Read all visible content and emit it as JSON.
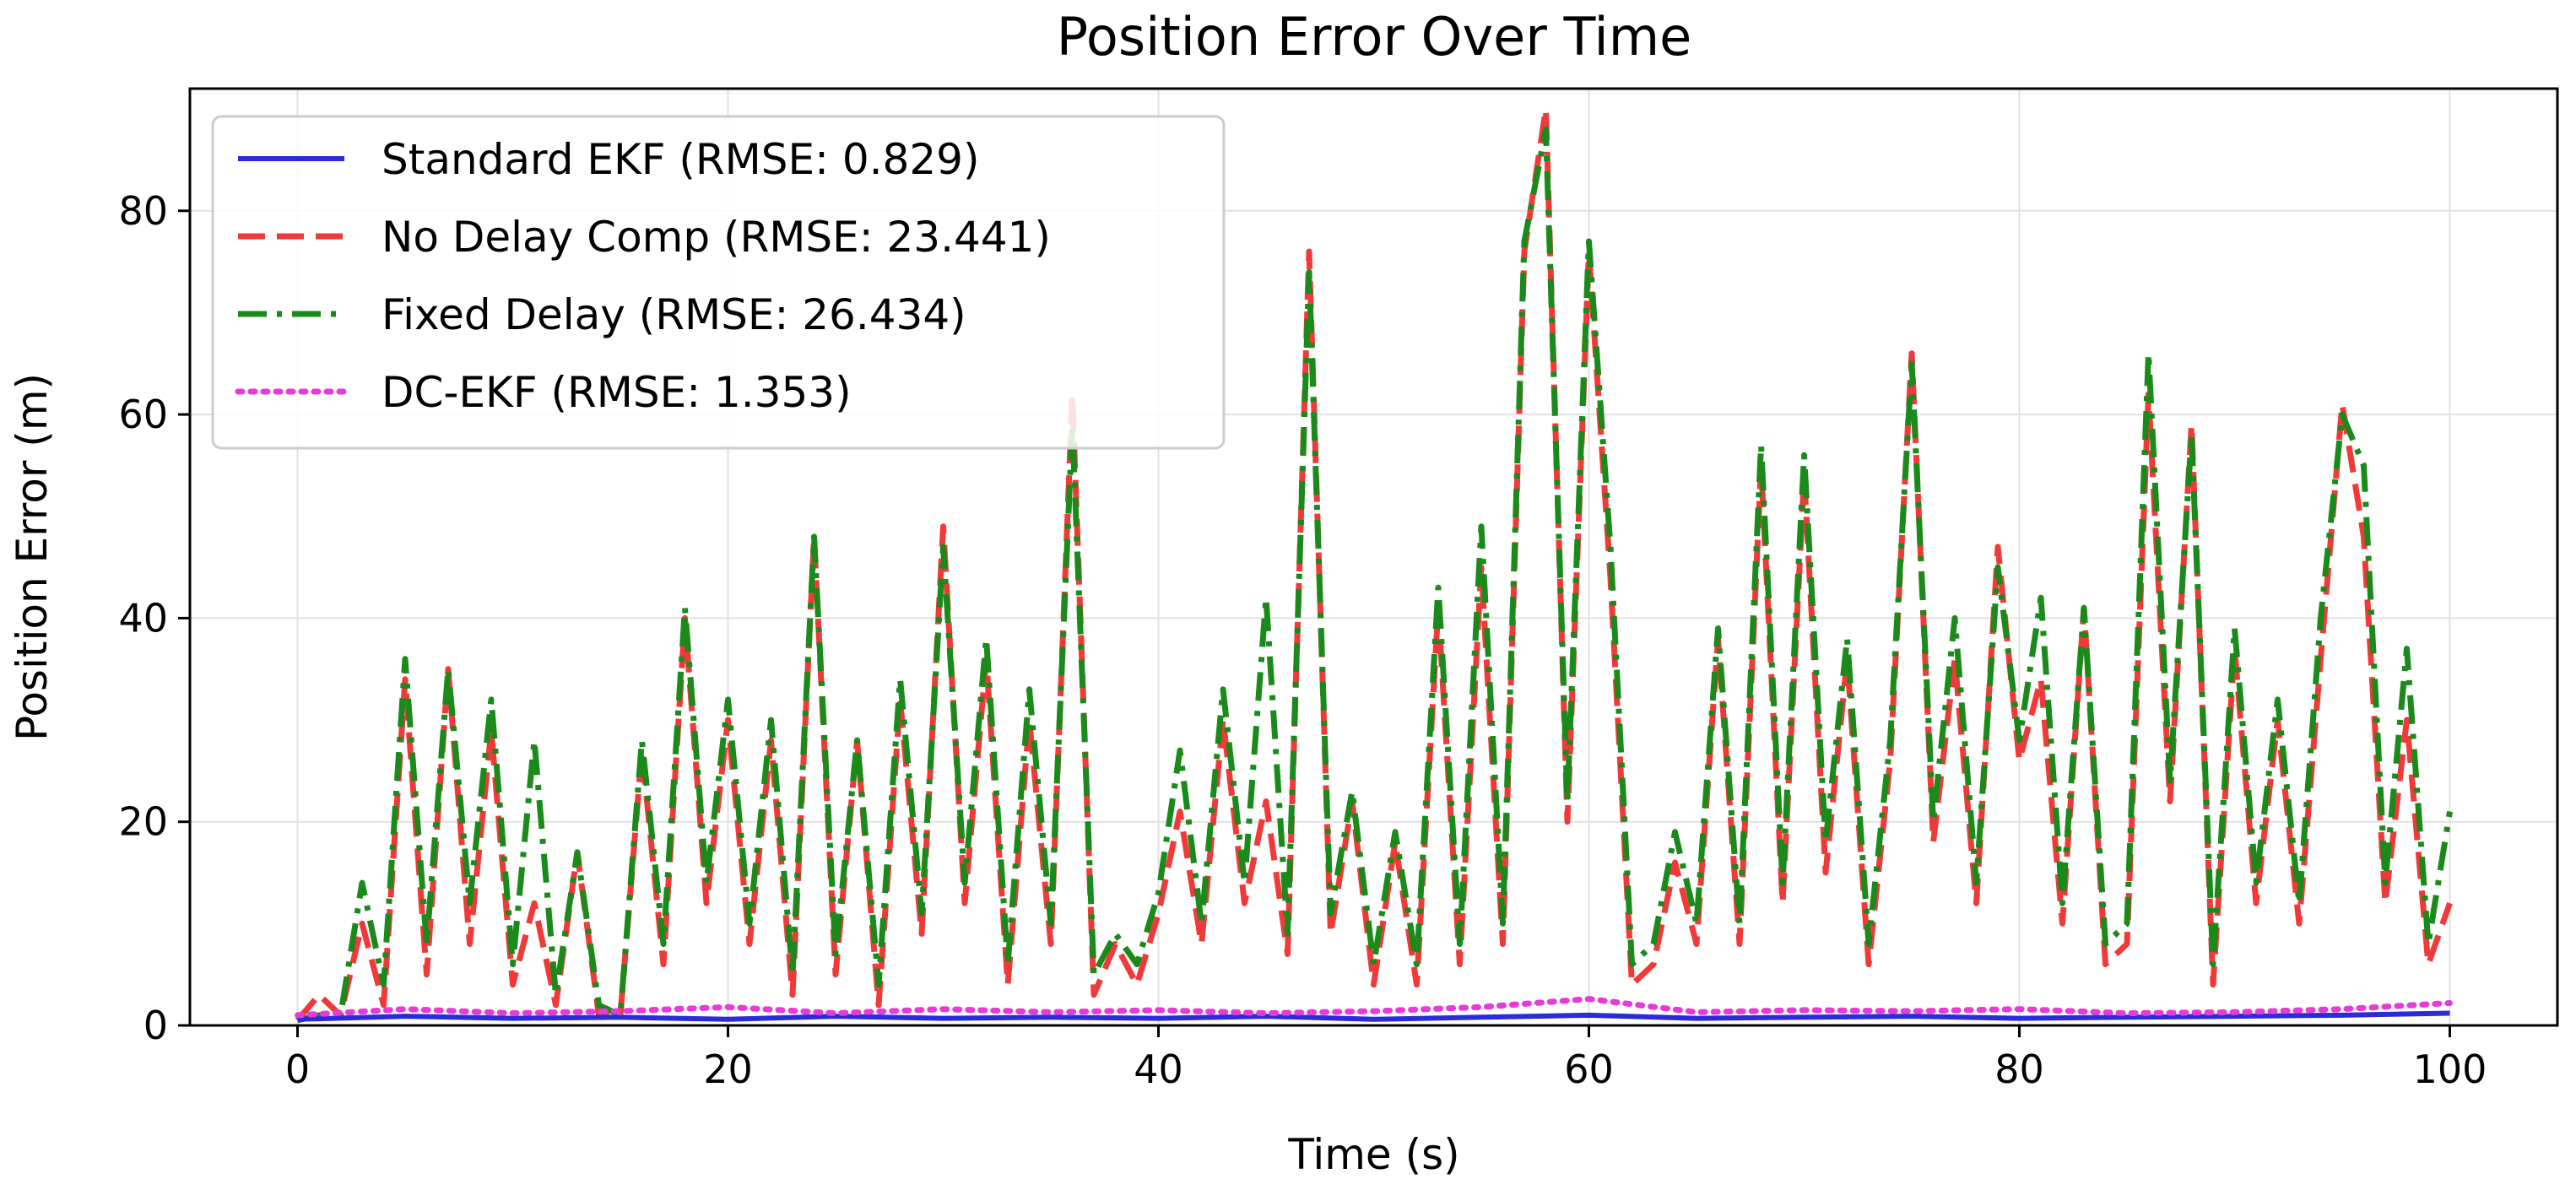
{
  "chart_data": {
    "type": "line",
    "title": "Position Error Over Time",
    "xlabel": "Time (s)",
    "ylabel": "Position Error (m)",
    "xlim": [
      -5,
      105
    ],
    "ylim": [
      0,
      92
    ],
    "xticks": [
      0,
      20,
      40,
      60,
      80,
      100
    ],
    "yticks": [
      0,
      20,
      40,
      60,
      80
    ],
    "grid": true,
    "legend_position": "upper-left",
    "series": [
      {
        "name": "Standard EKF (RMSE: 0.829)",
        "color": "#2b2bd9",
        "style": "solid",
        "x": [
          0,
          5,
          10,
          15,
          20,
          25,
          30,
          35,
          40,
          45,
          50,
          55,
          60,
          65,
          70,
          75,
          80,
          85,
          90,
          95,
          100
        ],
        "values": [
          0.6,
          0.9,
          0.7,
          0.8,
          0.6,
          0.9,
          0.7,
          0.8,
          0.7,
          0.9,
          0.6,
          0.8,
          1.0,
          0.7,
          0.8,
          0.9,
          0.7,
          0.8,
          0.9,
          1.0,
          1.2
        ]
      },
      {
        "name": "No Delay Comp (RMSE: 23.441)",
        "color": "#f03a3a",
        "style": "dashed",
        "x": [
          0,
          1,
          2,
          3,
          4,
          5,
          6,
          7,
          8,
          9,
          10,
          11,
          12,
          13,
          14,
          15,
          16,
          17,
          18,
          19,
          20,
          21,
          22,
          23,
          24,
          25,
          26,
          27,
          28,
          29,
          30,
          31,
          32,
          33,
          34,
          35,
          36,
          37,
          38,
          39,
          40,
          41,
          42,
          43,
          44,
          45,
          46,
          47,
          48,
          49,
          50,
          51,
          52,
          53,
          54,
          55,
          56,
          57,
          58,
          59,
          60,
          61,
          62,
          63,
          64,
          65,
          66,
          67,
          68,
          69,
          70,
          71,
          72,
          73,
          74,
          75,
          76,
          77,
          78,
          79,
          80,
          81,
          82,
          83,
          84,
          85,
          86,
          87,
          88,
          89,
          90,
          91,
          92,
          93,
          94,
          95,
          96,
          97,
          98,
          99,
          100
        ],
        "values": [
          0.5,
          3,
          1,
          10,
          2,
          34,
          5,
          35,
          8,
          29,
          4,
          12,
          2,
          17,
          1,
          1,
          27,
          6,
          40,
          12,
          30,
          8,
          28,
          3,
          48,
          5,
          28,
          2,
          32,
          9,
          49,
          12,
          36,
          4,
          30,
          8,
          62,
          3,
          8,
          4,
          11,
          21,
          8,
          30,
          12,
          22,
          7,
          76,
          9,
          22,
          4,
          18,
          4,
          41,
          6,
          45,
          8,
          76,
          90,
          20,
          76,
          44,
          4,
          6,
          16,
          8,
          38,
          8,
          55,
          12,
          54,
          15,
          36,
          6,
          26,
          66,
          18,
          36,
          12,
          47,
          26,
          34,
          10,
          41,
          6,
          8,
          62,
          22,
          59,
          4,
          37,
          12,
          30,
          10,
          36,
          61,
          48,
          12,
          30,
          6,
          12
        ]
      },
      {
        "name": "Fixed Delay (RMSE: 26.434)",
        "color": "#1a8a1a",
        "style": "dashdot",
        "x": [
          0,
          1,
          2,
          3,
          4,
          5,
          6,
          7,
          8,
          9,
          10,
          11,
          12,
          13,
          14,
          15,
          16,
          17,
          18,
          19,
          20,
          21,
          22,
          23,
          24,
          25,
          26,
          27,
          28,
          29,
          30,
          31,
          32,
          33,
          34,
          35,
          36,
          37,
          38,
          39,
          40,
          41,
          42,
          43,
          44,
          45,
          46,
          47,
          48,
          49,
          50,
          51,
          52,
          53,
          54,
          55,
          56,
          57,
          58,
          59,
          60,
          61,
          62,
          63,
          64,
          65,
          66,
          67,
          68,
          69,
          70,
          71,
          72,
          73,
          74,
          75,
          76,
          77,
          78,
          79,
          80,
          81,
          82,
          83,
          84,
          85,
          86,
          87,
          88,
          89,
          90,
          91,
          92,
          93,
          94,
          95,
          96,
          97,
          98,
          99,
          100
        ],
        "values": [
          0.5,
          1,
          1,
          14,
          4,
          36,
          8,
          35,
          12,
          32,
          6,
          28,
          3,
          17,
          2,
          1,
          28,
          8,
          41,
          14,
          32,
          10,
          30,
          5,
          48,
          7,
          28,
          4,
          34,
          11,
          47,
          14,
          38,
          6,
          33,
          10,
          59,
          5,
          9,
          6,
          13,
          27,
          10,
          33,
          14,
          42,
          9,
          74,
          11,
          23,
          6,
          19,
          6,
          43,
          8,
          49,
          10,
          77,
          88,
          22,
          77,
          47,
          6,
          8,
          19,
          10,
          39,
          10,
          57,
          14,
          56,
          18,
          38,
          8,
          28,
          65,
          20,
          40,
          14,
          45,
          28,
          42,
          12,
          41,
          8,
          10,
          66,
          24,
          58,
          6,
          39,
          14,
          32,
          12,
          40,
          60,
          55,
          14,
          37,
          8,
          21
        ]
      },
      {
        "name": "DC-EKF (RMSE: 1.353)",
        "color": "#e83ad8",
        "style": "dotted",
        "x": [
          0,
          5,
          10,
          15,
          20,
          25,
          30,
          35,
          40,
          45,
          50,
          55,
          60,
          65,
          70,
          75,
          80,
          85,
          90,
          95,
          100
        ],
        "values": [
          1.0,
          1.6,
          1.2,
          1.4,
          1.8,
          1.2,
          1.6,
          1.3,
          1.5,
          1.2,
          1.4,
          1.8,
          2.6,
          1.3,
          1.5,
          1.4,
          1.6,
          1.2,
          1.3,
          1.6,
          2.2
        ]
      }
    ]
  }
}
